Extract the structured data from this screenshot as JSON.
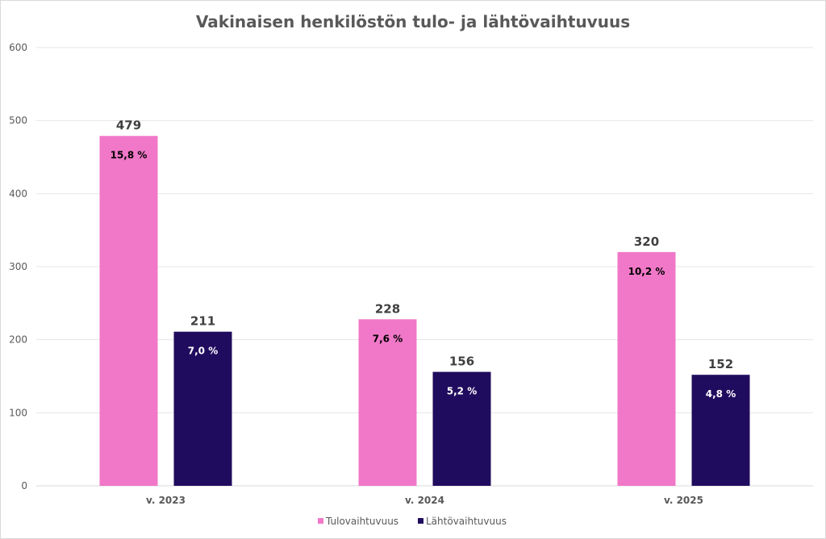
{
  "chart_data": {
    "type": "bar",
    "title": "Vakinaisen henkilöstön tulo- ja lähtövaihtuvuus",
    "categories": [
      "v. 2023",
      "v. 2024",
      "v. 2025"
    ],
    "series": [
      {
        "name": "Tulovaihtuvuus",
        "values": [
          479,
          228,
          320
        ],
        "labels": [
          "15,8 %",
          "7,6 %",
          "10,2 %"
        ],
        "color": "#f178c8",
        "label_color": "#000000"
      },
      {
        "name": "Lähtövaihtuvuus",
        "values": [
          211,
          156,
          152
        ],
        "labels": [
          "7,0 %",
          "5,2 %",
          "4,8 %"
        ],
        "color": "#200c5e",
        "label_color": "#ffffff"
      }
    ],
    "ylim": [
      0,
      600
    ],
    "yticks": [
      0,
      100,
      200,
      300,
      400,
      500,
      600
    ],
    "grid": true,
    "legend": "bottom"
  }
}
